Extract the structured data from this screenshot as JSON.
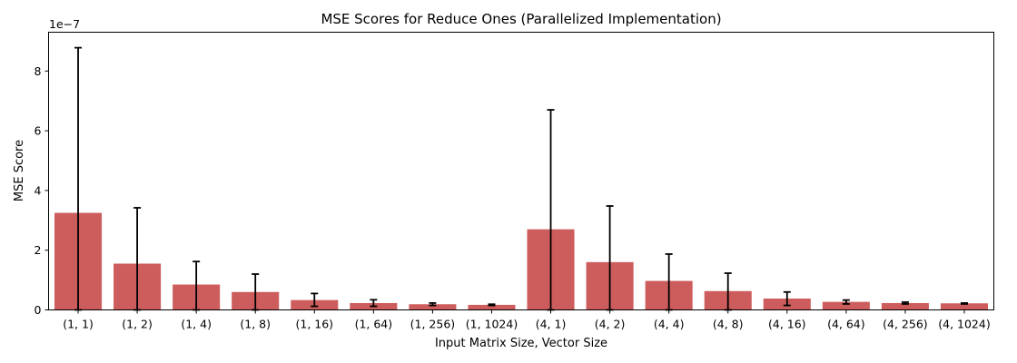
{
  "chart_data": {
    "type": "bar",
    "title": "MSE Scores for Reduce Ones (Parallelized Implementation)",
    "xlabel": "Input Matrix Size, Vector Size",
    "ylabel": "MSE Score",
    "scale_label": "1e−7",
    "y_scale_factor": 1e-07,
    "ylim": [
      0,
      9.3
    ],
    "yticks": [
      0,
      2,
      4,
      6,
      8
    ],
    "bar_color": "#cd5c5c",
    "errorbar_color": "#000000",
    "grid": false,
    "categories": [
      "(1, 1)",
      "(1, 2)",
      "(1, 4)",
      "(1, 8)",
      "(1, 16)",
      "(1, 64)",
      "(1, 256)",
      "(1, 1024)",
      "(4, 1)",
      "(4, 2)",
      "(4, 4)",
      "(4, 8)",
      "(4, 16)",
      "(4, 64)",
      "(4, 256)",
      "(4, 1024)"
    ],
    "values": [
      3.25,
      1.55,
      0.85,
      0.6,
      0.33,
      0.23,
      0.19,
      0.17,
      2.7,
      1.6,
      0.97,
      0.63,
      0.38,
      0.27,
      0.23,
      0.22
    ],
    "error_low": [
      0,
      0,
      0,
      0,
      0.12,
      0.12,
      0.15,
      0.15,
      0,
      0,
      0,
      0,
      0.15,
      0.2,
      0.2,
      0.2
    ],
    "error_high": [
      8.78,
      3.42,
      1.62,
      1.2,
      0.55,
      0.34,
      0.23,
      0.19,
      6.7,
      3.48,
      1.87,
      1.23,
      0.6,
      0.33,
      0.26,
      0.23
    ]
  }
}
